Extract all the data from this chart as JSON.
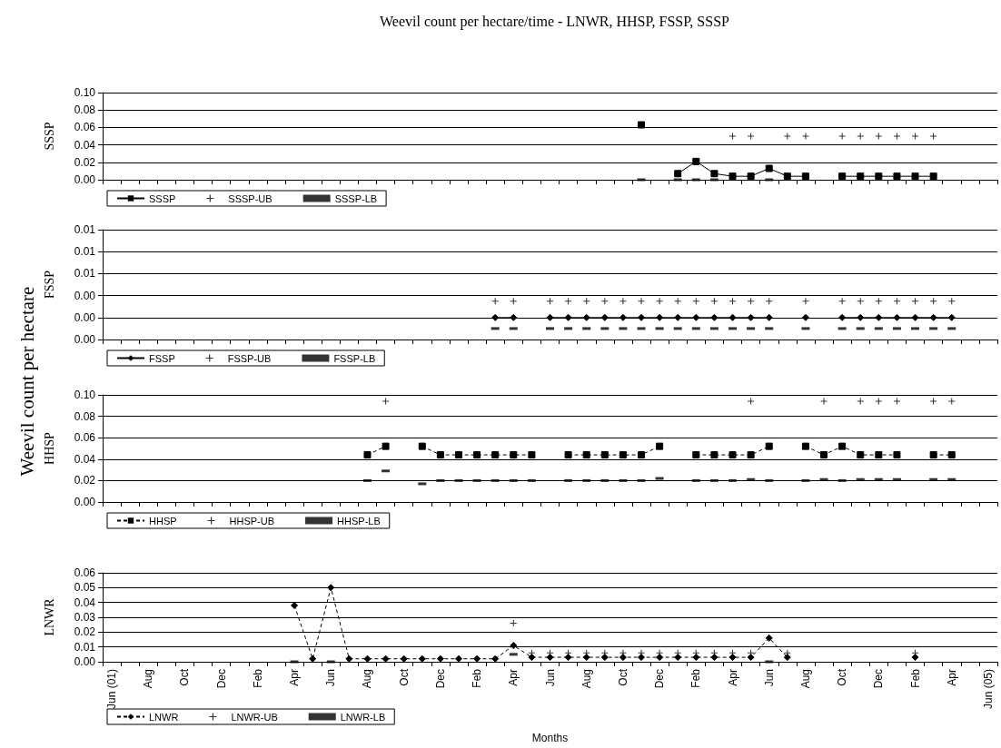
{
  "chart_data": [
    {
      "type": "line",
      "title": "Weevil count per hectare/time - LNWR, HHSP, FSSP, SSSP",
      "ylabel": "SSSP",
      "annotations": [
        "Weevil count per hectare"
      ],
      "categories": [
        null,
        null,
        null,
        null,
        null,
        null,
        null,
        null,
        null,
        null,
        null,
        null,
        null,
        null,
        null,
        null,
        null,
        null,
        null,
        null,
        null,
        null,
        null,
        null,
        null,
        null,
        null,
        null,
        null,
        null,
        null,
        null,
        null,
        null,
        null,
        null,
        null,
        null,
        null,
        null,
        null,
        null,
        null,
        null,
        null,
        null,
        null,
        null,
        null
      ],
      "ylim": [
        0,
        0.1
      ],
      "yticks": [
        {
          "value": 0,
          "label": "0.00"
        },
        {
          "value": 0.02,
          "label": "0.02"
        },
        {
          "value": 0.04,
          "label": "0.04"
        },
        {
          "value": 0.06,
          "label": "0.06"
        },
        {
          "value": 0.08,
          "label": "0.08"
        },
        {
          "value": 0.1,
          "label": "0.10"
        }
      ],
      "grid": "y",
      "legend": "bottom left",
      "tick_labels": "y",
      "series": [
        {
          "name": "SSSP",
          "color": "#000000",
          "marker": "square",
          "line_style": "solid",
          "values": [
            null,
            null,
            null,
            null,
            null,
            null,
            null,
            null,
            null,
            null,
            null,
            null,
            null,
            null,
            null,
            null,
            null,
            null,
            null,
            null,
            null,
            null,
            null,
            null,
            null,
            null,
            null,
            null,
            null,
            0.063,
            null,
            0.007,
            0.021,
            0.007,
            0.004,
            0.004,
            0.013,
            0.004,
            0.004,
            null,
            0.004,
            0.004,
            0.004,
            0.004,
            0.004,
            0.004,
            null,
            null,
            null
          ]
        },
        {
          "name": "SSSP-UB",
          "type": "scatter",
          "color": "#000000",
          "marker": "cross",
          "values": [
            null,
            null,
            null,
            null,
            null,
            null,
            null,
            null,
            null,
            null,
            null,
            null,
            null,
            null,
            null,
            null,
            null,
            null,
            null,
            null,
            null,
            null,
            null,
            null,
            null,
            null,
            null,
            null,
            null,
            null,
            null,
            null,
            null,
            null,
            0.05,
            0.05,
            null,
            0.05,
            0.05,
            null,
            0.05,
            0.05,
            0.05,
            0.05,
            0.05,
            0.05,
            null,
            null,
            null
          ]
        },
        {
          "name": "SSSP-LB",
          "type": "scatter",
          "color": "#000000",
          "marker": "square",
          "values": [
            null,
            null,
            null,
            null,
            null,
            null,
            null,
            null,
            null,
            null,
            null,
            null,
            null,
            null,
            null,
            null,
            null,
            null,
            null,
            null,
            null,
            null,
            null,
            null,
            null,
            null,
            null,
            null,
            null,
            0,
            null,
            0,
            0,
            0,
            null,
            null,
            0,
            null,
            null,
            null,
            null,
            null,
            null,
            null,
            null,
            null,
            null,
            null,
            null
          ]
        }
      ]
    },
    {
      "type": "line",
      "ylabel": "FSSP",
      "categories": [
        null,
        null,
        null,
        null,
        null,
        null,
        null,
        null,
        null,
        null,
        null,
        null,
        null,
        null,
        null,
        null,
        null,
        null,
        null,
        null,
        null,
        null,
        null,
        null,
        null,
        null,
        null,
        null,
        null,
        null,
        null,
        null,
        null,
        null,
        null,
        null,
        null,
        null,
        null,
        null,
        null,
        null,
        null,
        null,
        null,
        null,
        null,
        null,
        null
      ],
      "ylim": [
        0,
        0.01
      ],
      "yticks": [
        {
          "value": 0,
          "label": "0.00"
        },
        {
          "value": 0.002,
          "label": "0.00"
        },
        {
          "value": 0.004,
          "label": "0.00"
        },
        {
          "value": 0.006,
          "label": "0.01"
        },
        {
          "value": 0.008,
          "label": "0.01"
        },
        {
          "value": 0.01,
          "label": "0.01"
        }
      ],
      "grid": "y",
      "legend": "bottom left",
      "tick_labels": "y",
      "series": [
        {
          "name": "FSSP",
          "color": "#000000",
          "marker": "diamond",
          "line_style": "solid",
          "values": [
            null,
            null,
            null,
            null,
            null,
            null,
            null,
            null,
            null,
            null,
            null,
            null,
            null,
            null,
            null,
            null,
            null,
            null,
            null,
            null,
            null,
            0.002,
            0.002,
            null,
            0.002,
            0.002,
            0.002,
            0.002,
            0.002,
            0.002,
            0.002,
            0.002,
            0.002,
            0.002,
            0.002,
            0.002,
            0.002,
            null,
            0.002,
            null,
            0.002,
            0.002,
            0.002,
            0.002,
            0.002,
            0.002,
            0.002,
            null,
            null
          ]
        },
        {
          "name": "FSSP-UB",
          "type": "scatter",
          "color": "#000000",
          "marker": "cross",
          "values": [
            null,
            null,
            null,
            null,
            null,
            null,
            null,
            null,
            null,
            null,
            null,
            null,
            null,
            null,
            null,
            null,
            null,
            null,
            null,
            null,
            null,
            0.0035,
            0.0035,
            null,
            0.0035,
            0.0035,
            0.0035,
            0.0035,
            0.0035,
            0.0035,
            0.0035,
            0.0035,
            0.0035,
            0.0035,
            0.0035,
            0.0035,
            0.0035,
            null,
            0.0035,
            null,
            0.0035,
            0.0035,
            0.0035,
            0.0035,
            0.0035,
            0.0035,
            0.0035,
            null,
            null
          ]
        },
        {
          "name": "FSSP-LB",
          "type": "scatter",
          "color": "#000000",
          "marker": "square",
          "values": [
            null,
            null,
            null,
            null,
            null,
            null,
            null,
            null,
            null,
            null,
            null,
            null,
            null,
            null,
            null,
            null,
            null,
            null,
            null,
            null,
            null,
            0.001,
            0.001,
            null,
            0.001,
            0.001,
            0.001,
            0.001,
            0.001,
            0.001,
            0.001,
            0.001,
            0.001,
            0.001,
            0.001,
            0.001,
            0.001,
            null,
            0.001,
            null,
            0.001,
            0.001,
            0.001,
            0.001,
            0.001,
            0.001,
            0.001,
            null,
            null
          ]
        }
      ]
    },
    {
      "type": "line",
      "ylabel": "HHSP",
      "categories": [
        null,
        null,
        null,
        null,
        null,
        null,
        null,
        null,
        null,
        null,
        null,
        null,
        null,
        null,
        null,
        null,
        null,
        null,
        null,
        null,
        null,
        null,
        null,
        null,
        null,
        null,
        null,
        null,
        null,
        null,
        null,
        null,
        null,
        null,
        null,
        null,
        null,
        null,
        null,
        null,
        null,
        null,
        null,
        null,
        null,
        null,
        null,
        null,
        null
      ],
      "ylim": [
        0,
        0.1
      ],
      "yticks": [
        {
          "value": 0,
          "label": "0.00"
        },
        {
          "value": 0.02,
          "label": "0.02"
        },
        {
          "value": 0.04,
          "label": "0.04"
        },
        {
          "value": 0.06,
          "label": "0.06"
        },
        {
          "value": 0.08,
          "label": "0.08"
        },
        {
          "value": 0.1,
          "label": "0.10"
        }
      ],
      "grid": "y",
      "legend": "bottom left",
      "tick_labels": "y",
      "series": [
        {
          "name": "HHSP",
          "color": "#000000",
          "marker": "square",
          "line_style": "dashed",
          "values": [
            null,
            null,
            null,
            null,
            null,
            null,
            null,
            null,
            null,
            null,
            null,
            null,
            null,
            null,
            0.044,
            0.052,
            null,
            0.052,
            0.044,
            0.044,
            0.044,
            0.044,
            0.044,
            0.044,
            null,
            0.044,
            0.044,
            0.044,
            0.044,
            0.044,
            0.052,
            null,
            0.044,
            0.044,
            0.044,
            0.044,
            0.052,
            null,
            0.052,
            0.044,
            0.052,
            0.044,
            0.044,
            0.044,
            null,
            0.044,
            0.044,
            null,
            null
          ]
        },
        {
          "name": "HHSP-UB",
          "type": "scatter",
          "color": "#000000",
          "marker": "cross",
          "values": [
            null,
            null,
            null,
            null,
            null,
            null,
            null,
            null,
            null,
            null,
            null,
            null,
            null,
            null,
            null,
            0.094,
            null,
            null,
            null,
            null,
            null,
            null,
            null,
            null,
            null,
            null,
            null,
            null,
            null,
            null,
            null,
            null,
            null,
            null,
            null,
            0.094,
            null,
            null,
            null,
            0.094,
            null,
            0.094,
            0.094,
            0.094,
            null,
            0.094,
            0.094,
            null,
            null
          ]
        },
        {
          "name": "HHSP-LB",
          "type": "scatter",
          "color": "#000000",
          "marker": "square",
          "values": [
            null,
            null,
            null,
            null,
            null,
            null,
            null,
            null,
            null,
            null,
            null,
            null,
            null,
            null,
            0.02,
            0.029,
            null,
            0.017,
            0.02,
            0.02,
            0.02,
            0.02,
            0.02,
            0.02,
            null,
            0.02,
            0.02,
            0.02,
            0.02,
            0.02,
            0.022,
            null,
            0.02,
            0.02,
            0.02,
            0.021,
            0.02,
            null,
            0.02,
            0.021,
            0.02,
            0.021,
            0.021,
            0.021,
            null,
            0.021,
            0.021,
            null,
            null
          ]
        }
      ]
    },
    {
      "type": "line",
      "ylabel": "LNWR",
      "xlabel": "Months",
      "categories": [
        "Jun (01)",
        null,
        "Aug",
        null,
        "Oct",
        null,
        "Dec",
        null,
        "Feb",
        null,
        "Apr",
        null,
        "Jun",
        null,
        "Aug",
        null,
        "Oct",
        null,
        "Dec",
        null,
        "Feb",
        null,
        "Apr",
        null,
        "Jun",
        null,
        "Aug",
        null,
        "Oct",
        null,
        "Dec",
        null,
        "Feb",
        null,
        "Apr",
        null,
        "Jun",
        null,
        "Aug",
        null,
        "Oct",
        null,
        "Dec",
        null,
        "Feb",
        null,
        "Apr",
        null,
        "Jun (05)"
      ],
      "ylim": [
        0,
        0.06
      ],
      "yticks": [
        {
          "value": 0,
          "label": "0.00"
        },
        {
          "value": 0.01,
          "label": "0.01"
        },
        {
          "value": 0.02,
          "label": "0.02"
        },
        {
          "value": 0.03,
          "label": "0.03"
        },
        {
          "value": 0.04,
          "label": "0.04"
        },
        {
          "value": 0.05,
          "label": "0.05"
        },
        {
          "value": 0.06,
          "label": "0.06"
        }
      ],
      "grid": "y",
      "legend": "bottom left",
      "series": [
        {
          "name": "LNWR",
          "color": "#000000",
          "marker": "diamond",
          "line_style": "dashed",
          "values": [
            null,
            null,
            null,
            null,
            null,
            null,
            null,
            null,
            null,
            null,
            0.038,
            0.002,
            0.05,
            0.002,
            0.002,
            0.002,
            0.002,
            0.002,
            0.002,
            0.002,
            0.002,
            0.002,
            0.011,
            0.003,
            0.003,
            0.003,
            0.003,
            0.003,
            0.003,
            0.003,
            0.003,
            0.003,
            0.003,
            0.003,
            0.003,
            0.003,
            0.016,
            0.003,
            null,
            null,
            null,
            null,
            null,
            null,
            0.003,
            null,
            null,
            null,
            null
          ]
        },
        {
          "name": "LNWR-UB",
          "type": "scatter",
          "color": "#000000",
          "marker": "cross",
          "values": [
            null,
            null,
            null,
            null,
            null,
            null,
            null,
            null,
            null,
            null,
            null,
            null,
            null,
            null,
            null,
            null,
            null,
            null,
            null,
            null,
            null,
            null,
            0.026,
            0.006,
            0.006,
            0.006,
            0.006,
            0.006,
            0.006,
            0.006,
            0.006,
            0.006,
            0.006,
            0.006,
            0.006,
            0.006,
            null,
            0.006,
            null,
            null,
            null,
            null,
            null,
            null,
            0.006,
            null,
            null,
            null,
            null
          ]
        },
        {
          "name": "LNWR-LB",
          "type": "scatter",
          "color": "#000000",
          "marker": "square",
          "values": [
            null,
            null,
            null,
            null,
            null,
            null,
            null,
            null,
            null,
            null,
            0,
            null,
            0,
            null,
            null,
            null,
            null,
            null,
            null,
            null,
            null,
            null,
            0.005,
            null,
            null,
            null,
            null,
            null,
            null,
            null,
            null,
            null,
            null,
            null,
            null,
            null,
            0,
            null,
            null,
            null,
            null,
            null,
            null,
            null,
            null,
            null,
            null,
            null,
            null
          ]
        }
      ]
    }
  ]
}
